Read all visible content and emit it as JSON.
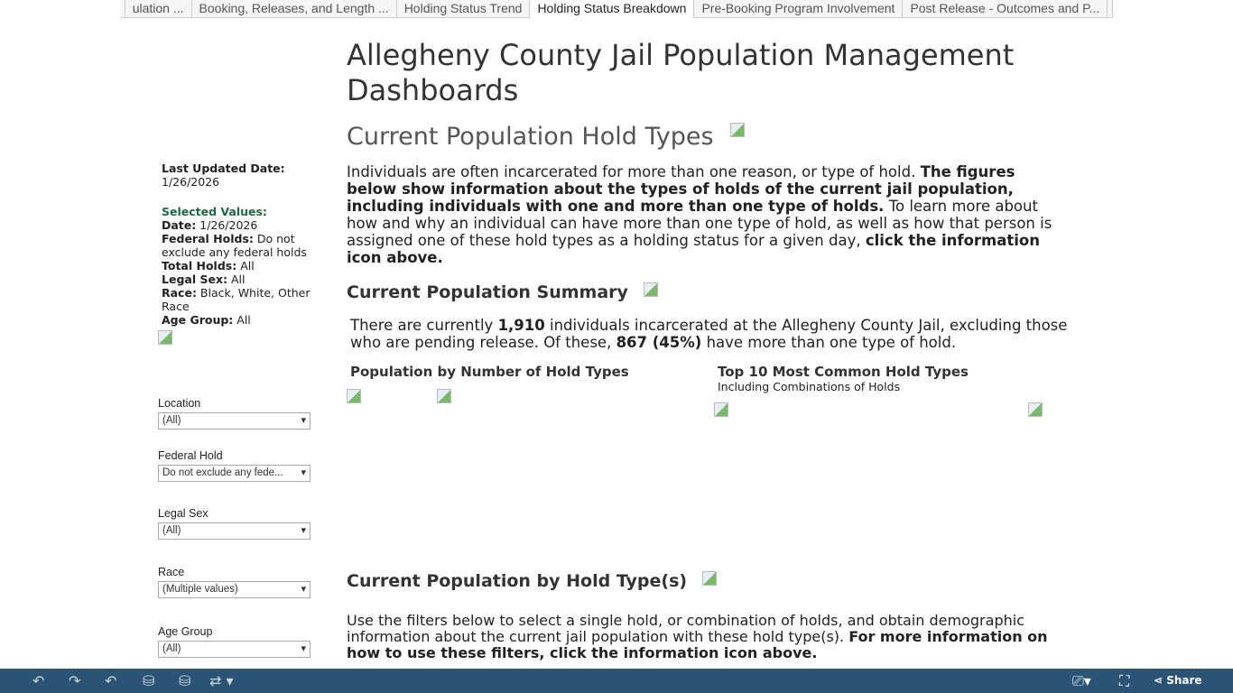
{
  "tabs": [
    "ulation ...",
    "Booking, Releases, and Length ...",
    "Holding Status Trend",
    "Holding Status Breakdown",
    "Pre-Booking Program Involvement",
    "Post Release - Outcomes and P..."
  ],
  "active_tab": 3,
  "sidebar": {
    "last_updated_label": "Last Updated Date:",
    "last_updated": "1/26/2026",
    "selected_label": "Selected Values:",
    "values": [
      {
        "k": "Date:",
        "v": " 1/26/2026"
      },
      {
        "k": "Federal Holds:",
        "v": " Do not exclude any federal holds"
      },
      {
        "k": "Total Holds:",
        "v": " All"
      },
      {
        "k": "Legal Sex:",
        "v": " All"
      },
      {
        "k": "Race:",
        "v": " Black, White, Other Race"
      },
      {
        "k": "Age Group:",
        "v": " All"
      }
    ],
    "filters": [
      {
        "label": "Location",
        "value": "(All)"
      },
      {
        "label": "Federal Hold",
        "value": "Do not exclude any fede..."
      },
      {
        "label": "Legal Sex",
        "value": "(All)"
      },
      {
        "label": "Race",
        "value": "(Multiple values)"
      },
      {
        "label": "Age Group",
        "value": "(All)"
      }
    ]
  },
  "main": {
    "title": "Allegheny County Jail Population Management Dashboards",
    "subtitle": "Current Population Hold Types",
    "intro_1": "Individuals are often incarcerated for more than one reason, or type of hold. ",
    "intro_2": "The figures below show information about the types of holds of the current jail population, including individuals with one and more than one type of holds.",
    "intro_3": " To learn more about how and why an individual can have more than one type of hold, as well as how that person is assigned one of these hold types as a holding status for a given day, ",
    "intro_4": "click the information icon above.",
    "summary_title": "Current Population Summary",
    "sum_1": "There are currently ",
    "total": "1,910",
    "sum_2": " individuals incarcerated at the Allegheny County Jail, excluding those who are pending release. Of these, ",
    "multi": "867 (45%)",
    "sum_3": " have more than one type of hold.",
    "chart1_title": "Population by Number of Hold Types",
    "chart2_title": "Top 10 Most Common Hold Types",
    "chart2_sub": "Including Combinations of Holds",
    "section_title": "Current Population by Hold Type(s)",
    "sec_1": "Use the filters below to select a single hold, or combination of holds, and obtain demographic information about the current jail population with these hold type(s). ",
    "sec_2": "For more information on how to use these filters, click the information icon above."
  },
  "toolbar": {
    "share": "Share"
  }
}
